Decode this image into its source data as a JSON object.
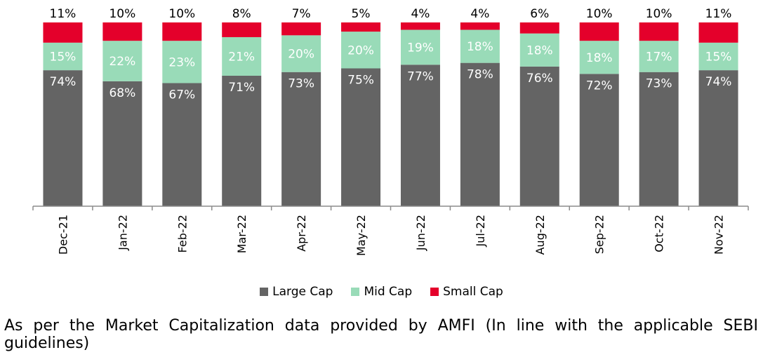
{
  "chart_data": {
    "type": "bar",
    "stacked": true,
    "categories": [
      "Dec-21",
      "Jan-22",
      "Feb-22",
      "Mar-22",
      "Apr-22",
      "May-22",
      "Jun-22",
      "Jul-22",
      "Aug-22",
      "Sep-22",
      "Oct-22",
      "Nov-22"
    ],
    "series": [
      {
        "name": "Large Cap",
        "color": "#646464",
        "label_color": "#ffffff",
        "values": [
          74,
          68,
          67,
          71,
          73,
          75,
          77,
          78,
          76,
          72,
          73,
          74
        ]
      },
      {
        "name": "Mid Cap",
        "color": "#99dbb8",
        "label_color": "#ffffff",
        "values": [
          15,
          22,
          23,
          21,
          20,
          20,
          19,
          18,
          18,
          18,
          17,
          15
        ]
      },
      {
        "name": "Small Cap",
        "color": "#e4002b",
        "label_color": "#000000",
        "values": [
          11,
          10,
          10,
          8,
          7,
          5,
          4,
          4,
          6,
          10,
          10,
          11
        ]
      }
    ],
    "value_suffix": "%",
    "title": "",
    "xlabel": "",
    "ylabel": "",
    "ylim": [
      0,
      100
    ],
    "grid": false,
    "legend_position": "bottom"
  },
  "legend": {
    "large_cap": "Large Cap",
    "mid_cap": "Mid Cap",
    "small_cap": "Small Cap"
  },
  "footnote": "As per the Market Capitalization data provided by AMFI (In line with the applicable SEBI guidelines)"
}
